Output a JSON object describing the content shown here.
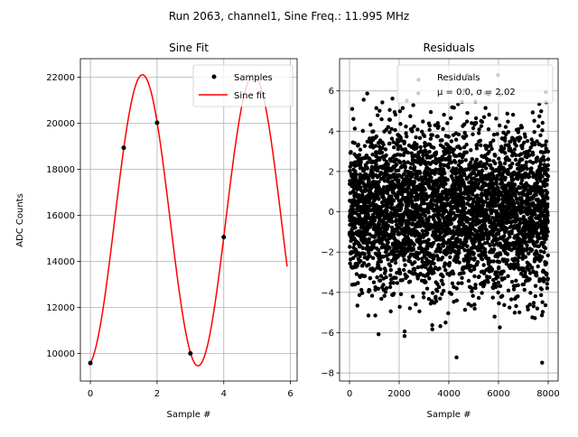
{
  "suptitle": "Run 2063, channel1, Sine Freq.: 11.995 MHz",
  "chart_data": [
    {
      "type": "scatter+line",
      "title": "Sine Fit",
      "xlabel": "Sample #",
      "ylabel": "ADC Counts",
      "xlim": [
        -0.3,
        6.2
      ],
      "ylim": [
        8800,
        22800
      ],
      "xticks": [
        0,
        2,
        4,
        6
      ],
      "yticks": [
        10000,
        12000,
        14000,
        16000,
        18000,
        20000,
        22000
      ],
      "grid": true,
      "legend": {
        "position": "top-right",
        "entries": [
          "Samples",
          "Sine fit"
        ]
      },
      "samples": {
        "name": "Samples",
        "x": [
          0,
          1,
          2,
          3,
          4
        ],
        "y": [
          9580,
          18930,
          20020,
          10000,
          15050
        ]
      },
      "fit": {
        "name": "Sine fit",
        "color": "#ff0000",
        "amplitude": 6320,
        "offset": 15780,
        "period": 3.335,
        "phase_peak_x": 1.56,
        "x_range": [
          0,
          5.9
        ]
      }
    },
    {
      "type": "scatter",
      "title": "Residuals",
      "xlabel": "Sample #",
      "ylabel": "",
      "xlim": [
        -400,
        8400
      ],
      "ylim": [
        -8.4,
        7.6
      ],
      "xticks": [
        0,
        2000,
        4000,
        6000,
        8000
      ],
      "yticks": [
        -8,
        -6,
        -4,
        -2,
        0,
        2,
        4,
        6
      ],
      "grid": true,
      "legend": {
        "position": "top-right",
        "entries": [
          "Residuals",
          "μ = 0.0, σ = 2.02"
        ]
      },
      "series": {
        "name": "Residuals",
        "n_points": 8000,
        "x_range": [
          0,
          7999
        ],
        "mean": 0.0,
        "std": 2.02
      }
    }
  ]
}
